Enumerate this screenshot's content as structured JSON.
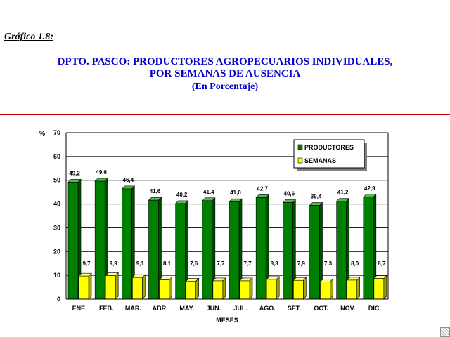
{
  "caption": "Gráfico 1.8:",
  "title_line1": "DPTO. PASCO: PRODUCTORES AGROPECUARIOS INDIVIDUALES,",
  "title_line2": "POR SEMANAS DE AUSENCIA",
  "title_line3": "(En Porcentaje)",
  "colors": {
    "title": "#0000c8",
    "rule": "#d40000",
    "productores": "#008000",
    "semanas": "#ffff00"
  },
  "chart_data": {
    "type": "bar",
    "categories": [
      "ENE.",
      "FEB.",
      "MAR.",
      "ABR.",
      "MAY.",
      "JUN.",
      "JUL.",
      "AGO.",
      "SET.",
      "OCT.",
      "NOV.",
      "DIC."
    ],
    "series": [
      {
        "name": "PRODUCTORES",
        "values": [
          49.2,
          49.6,
          46.4,
          41.6,
          40.2,
          41.4,
          41.0,
          42.7,
          40.6,
          39.4,
          41.2,
          42.9
        ],
        "labels": [
          "49,2",
          "49,6",
          "46,4",
          "41,6",
          "40,2",
          "41,4",
          "41,0",
          "42,7",
          "40,6",
          "39,4",
          "41,2",
          "42,9"
        ]
      },
      {
        "name": "SEMANAS",
        "values": [
          9.7,
          9.9,
          9.1,
          8.1,
          7.6,
          7.7,
          7.7,
          8.3,
          7.9,
          7.3,
          8.0,
          8.7
        ],
        "labels": [
          "9,7",
          "9,9",
          "9,1",
          "8,1",
          "7,6",
          "7,7",
          "7,7",
          "8,3",
          "7,9",
          "7,3",
          "8,0",
          "8,7"
        ]
      }
    ],
    "xlabel": "MESES",
    "ylabel": "%",
    "ylim": [
      0,
      70
    ],
    "yticks": [
      0,
      10,
      20,
      30,
      40,
      50,
      60,
      70
    ],
    "grid": true,
    "legend": "top-right"
  }
}
